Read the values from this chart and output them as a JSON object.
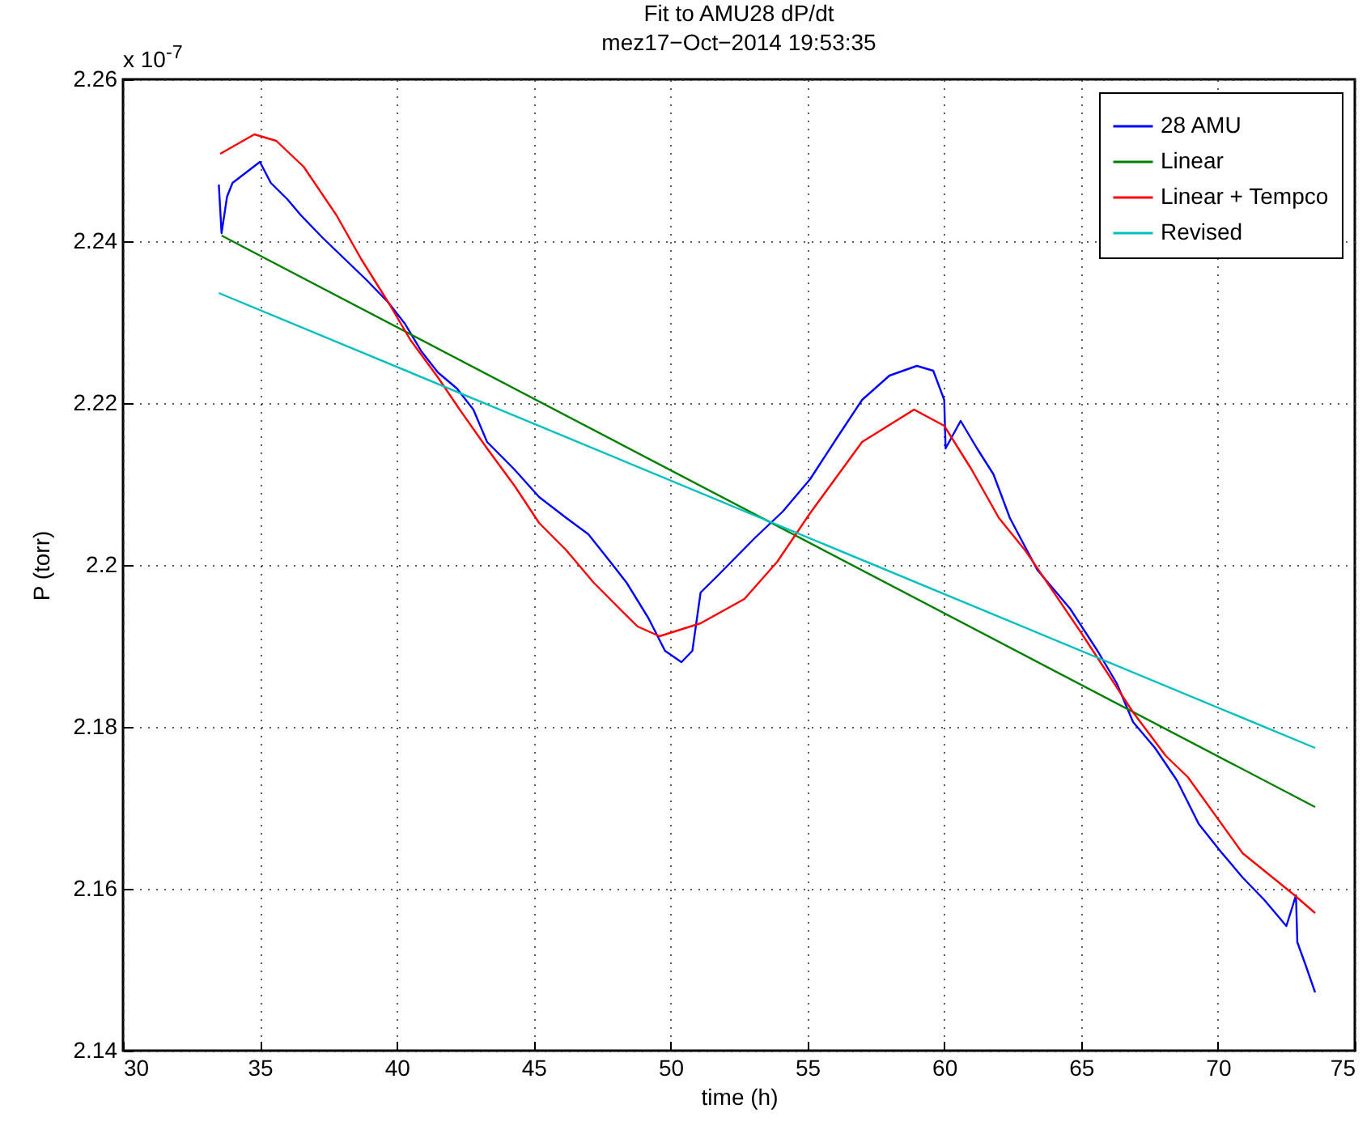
{
  "chart_data": {
    "type": "line",
    "title": "Fit to AMU28 dP/dt",
    "subtitle": "mez17−Oct−2014 19:53:35",
    "xlabel": "time (h)",
    "ylabel": "P (torr)",
    "annotations": [
      "x 10$^{-7}$"
    ],
    "xlim": [
      30,
      75
    ],
    "xticks": [
      30,
      35,
      40,
      45,
      50,
      55,
      60,
      65,
      70,
      75
    ],
    "ylim": [
      2.14,
      2.26
    ],
    "yticks": [
      2.14,
      2.16,
      2.18,
      2.2,
      2.22,
      2.24,
      2.26
    ],
    "grid": true,
    "legend": "top right",
    "marker": "none",
    "line_style": "solid",
    "series": [
      {
        "name": "28 AMU",
        "color": "#0000ff",
        "x": [
          33.5,
          33.6,
          33.8,
          34.0,
          35.0,
          35.4,
          36.0,
          36.5,
          37.3,
          38.1,
          38.9,
          39.7,
          40.3,
          40.9,
          41.5,
          42.2,
          42.8,
          43.3,
          44.3,
          45.2,
          46.2,
          47.0,
          47.8,
          48.4,
          49.2,
          49.8,
          50.4,
          50.8,
          51.1,
          51.7,
          53.1,
          54.1,
          55.1,
          56.1,
          57.0,
          58.0,
          59.0,
          59.6,
          60.0,
          60.05,
          60.6,
          61.2,
          61.8,
          62.4,
          63.4,
          64.6,
          65.6,
          66.3,
          66.9,
          67.7,
          68.5,
          69.3,
          70.1,
          70.9,
          71.7,
          72.5,
          72.85,
          72.9,
          73.2,
          73.55
        ],
        "values": [
          2.247,
          2.241,
          2.2455,
          2.2472,
          2.2498,
          2.2472,
          2.2452,
          2.2432,
          2.2404,
          2.2378,
          2.2352,
          2.2324,
          2.2298,
          2.2264,
          2.2238,
          2.2218,
          2.2192,
          2.2152,
          2.2118,
          2.2084,
          2.2058,
          2.2038,
          2.2004,
          2.1978,
          2.1934,
          2.1894,
          2.188,
          2.1894,
          2.1966,
          2.1986,
          2.2034,
          2.2066,
          2.2106,
          2.2158,
          2.2204,
          2.2234,
          2.2246,
          2.224,
          2.2204,
          2.2144,
          2.2178,
          2.2144,
          2.2112,
          2.2058,
          2.1994,
          2.1946,
          2.1894,
          2.1854,
          2.1806,
          2.1774,
          2.1734,
          2.168,
          2.1646,
          2.1614,
          2.1586,
          2.1554,
          2.1592,
          2.1534,
          2.1506,
          2.1472
        ]
      },
      {
        "name": "Linear",
        "color": "#008000",
        "x": [
          33.6,
          73.55
        ],
        "values": [
          2.2407,
          2.1701
        ]
      },
      {
        "name": "Linear + Tempco",
        "color": "#ff0000",
        "x": [
          33.55,
          34.8,
          35.6,
          36.6,
          37.8,
          38.7,
          39.7,
          40.5,
          41.5,
          42.3,
          43.3,
          44.3,
          45.2,
          46.2,
          47.2,
          48.2,
          48.8,
          49.6,
          51.1,
          52.7,
          53.9,
          55.1,
          57.0,
          58.9,
          60.0,
          61.0,
          62.0,
          62.96,
          64.97,
          66.9,
          68.1,
          68.9,
          70.9,
          72.8,
          73.55
        ],
        "values": [
          2.2508,
          2.2532,
          2.2524,
          2.2492,
          2.2432,
          2.2378,
          2.2324,
          2.2278,
          2.2232,
          2.2192,
          2.2144,
          2.2098,
          2.2052,
          2.2018,
          2.1978,
          2.1944,
          2.1924,
          2.1912,
          2.1928,
          2.1958,
          2.2004,
          2.2064,
          2.2152,
          2.2192,
          2.2172,
          2.2118,
          2.2058,
          2.2018,
          2.1918,
          2.1818,
          2.1764,
          2.1738,
          2.1644,
          2.1592,
          2.157
        ]
      },
      {
        "name": "Revised",
        "color": "#00bfbf",
        "x": [
          33.5,
          73.55
        ],
        "values": [
          2.2336,
          2.1774
        ]
      }
    ]
  }
}
